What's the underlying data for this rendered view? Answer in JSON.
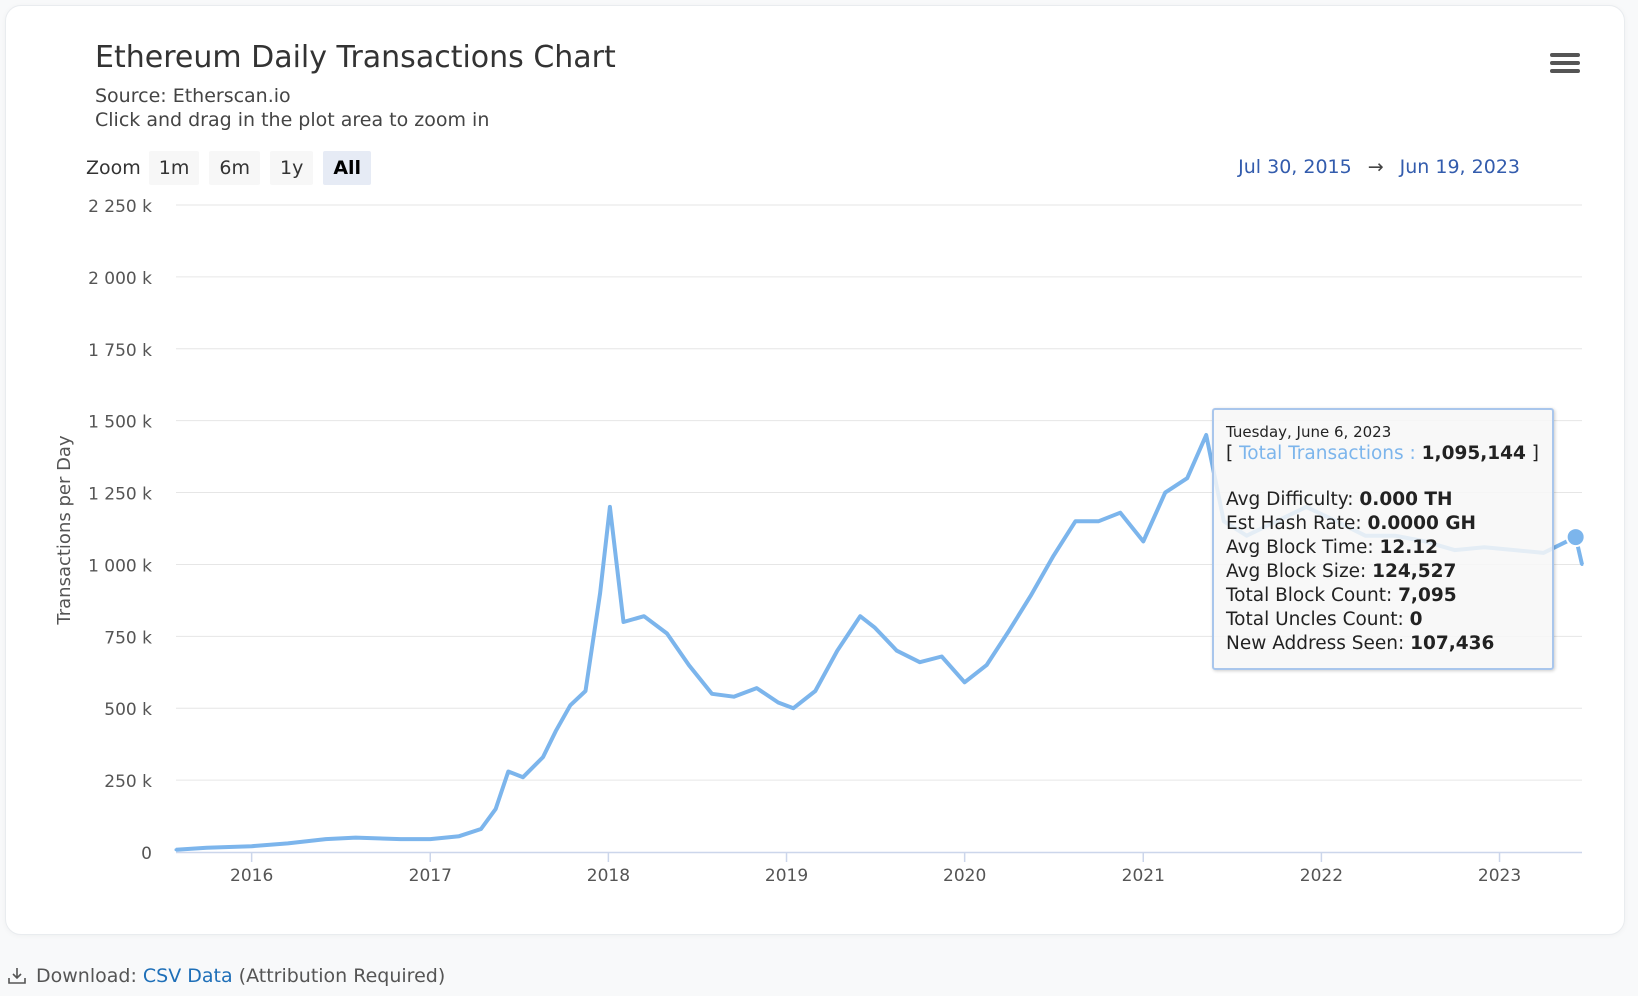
{
  "title": "Ethereum Daily Transactions Chart",
  "subtitle_lines": [
    "Source: Etherscan.io",
    "Click and drag in the plot area to zoom in"
  ],
  "menu_icon": "hamburger-menu-icon",
  "zoom": {
    "label": "Zoom",
    "buttons": [
      {
        "label": "1m",
        "active": false
      },
      {
        "label": "6m",
        "active": false
      },
      {
        "label": "1y",
        "active": false
      },
      {
        "label": "All",
        "active": true
      }
    ]
  },
  "range": {
    "from": "Jul 30, 2015",
    "arrow": "→",
    "to": "Jun 19, 2023"
  },
  "tooltip": {
    "date": "Tuesday, June 6, 2023",
    "series_open": "[ ",
    "series_label": "Total Transactions : ",
    "series_value": "1,095,144",
    "series_close": " ]",
    "rows": [
      {
        "label": "Avg Difficulty: ",
        "value": "0.000 TH"
      },
      {
        "label": "Est Hash Rate: ",
        "value": "0.0000 GH"
      },
      {
        "label": "Avg Block Time: ",
        "value": "12.12"
      },
      {
        "label": "Avg Block Size: ",
        "value": "124,527"
      },
      {
        "label": "Total Block Count: ",
        "value": "7,095"
      },
      {
        "label": "Total Uncles Count: ",
        "value": "0"
      },
      {
        "label": "New Address Seen: ",
        "value": "107,436"
      }
    ]
  },
  "download": {
    "prefix": "Download: ",
    "link": "CSV Data",
    "suffix": " (Attribution Required)",
    "icon": "download-icon"
  },
  "colors": {
    "series": "#7cb5ec",
    "grid": "#e6e6e6",
    "range_text": "#335cad"
  },
  "chart_data": {
    "type": "line",
    "title": "Ethereum Daily Transactions Chart",
    "ylabel": "Transactions per Day",
    "xlabel": "",
    "ylim": [
      0,
      2250000
    ],
    "y_ticks": [
      0,
      250000,
      500000,
      750000,
      1000000,
      1250000,
      1500000,
      1750000,
      2000000,
      2250000
    ],
    "y_tick_labels": [
      "0",
      "250 k",
      "500 k",
      "750 k",
      "1 000 k",
      "1 250 k",
      "1 500 k",
      "1 750 k",
      "2 000 k",
      "2 250 k"
    ],
    "x_range": [
      "2015-07-30",
      "2023-06-19"
    ],
    "x_tick_labels": [
      "2016",
      "2017",
      "2018",
      "2019",
      "2020",
      "2021",
      "2022",
      "2023"
    ],
    "x_tick_dates": [
      "2016-01-01",
      "2017-01-01",
      "2018-01-01",
      "2019-01-01",
      "2020-01-01",
      "2021-01-01",
      "2022-01-01",
      "2023-01-01"
    ],
    "legend": false,
    "grid": true,
    "series": [
      {
        "x": [
          "2015-07-30",
          "2015-10-01",
          "2016-01-01",
          "2016-03-15",
          "2016-06-01",
          "2016-08-01",
          "2016-11-01",
          "2017-01-01",
          "2017-03-01",
          "2017-04-15",
          "2017-05-15",
          "2017-06-10",
          "2017-07-10",
          "2017-08-20",
          "2017-09-15",
          "2017-10-15",
          "2017-11-15",
          "2017-12-15",
          "2018-01-04",
          "2018-02-01",
          "2018-03-15",
          "2018-05-01",
          "2018-06-15",
          "2018-08-01",
          "2018-09-15",
          "2018-11-01",
          "2018-12-15",
          "2019-01-15",
          "2019-03-01",
          "2019-04-15",
          "2019-06-01",
          "2019-07-01",
          "2019-08-15",
          "2019-10-01",
          "2019-11-15",
          "2020-01-01",
          "2020-02-15",
          "2020-04-01",
          "2020-05-15",
          "2020-07-01",
          "2020-08-15",
          "2020-10-01",
          "2020-11-15",
          "2021-01-01",
          "2021-02-15",
          "2021-04-01",
          "2021-05-10",
          "2021-06-15",
          "2021-08-01",
          "2021-10-01",
          "2021-12-01",
          "2022-02-01",
          "2022-04-01",
          "2022-06-01",
          "2022-08-01",
          "2022-10-01",
          "2022-12-01",
          "2023-02-01",
          "2023-04-01",
          "2023-06-06",
          "2023-06-19"
        ],
        "y": [
          8000,
          15000,
          20000,
          30000,
          45000,
          50000,
          45000,
          45000,
          55000,
          80000,
          150000,
          280000,
          260000,
          330000,
          420000,
          510000,
          560000,
          900000,
          1200000,
          800000,
          820000,
          760000,
          650000,
          550000,
          540000,
          570000,
          520000,
          500000,
          560000,
          700000,
          820000,
          780000,
          700000,
          660000,
          680000,
          590000,
          650000,
          770000,
          890000,
          1030000,
          1150000,
          1150000,
          1180000,
          1080000,
          1250000,
          1300000,
          1450000,
          1150000,
          1100000,
          1150000,
          1200000,
          1150000,
          1100000,
          1100000,
          1080000,
          1050000,
          1060000,
          1050000,
          1040000,
          1095144,
          1000000
        ]
      }
    ]
  }
}
